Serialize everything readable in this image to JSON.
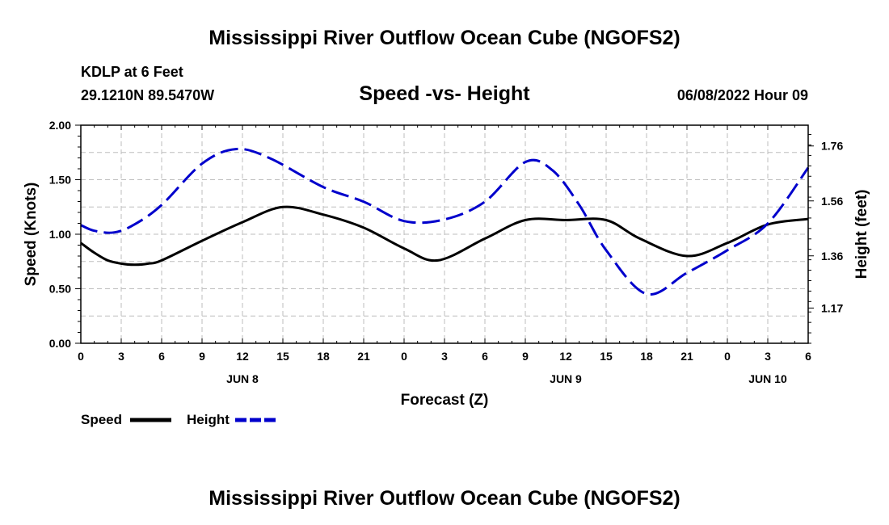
{
  "main_title": "Mississippi River Outflow Ocean Cube (NGOFS2)",
  "footer_title": "Mississippi River Outflow Ocean Cube (NGOFS2)",
  "station": {
    "name": "KDLP at 6 Feet",
    "coords": "29.1210N  89.5470W"
  },
  "subtitle": "Speed -vs- Height",
  "datetime": "06/08/2022 Hour 09",
  "chart_data": {
    "type": "line",
    "title": "Speed -vs- Height",
    "xlabel": "Forecast (Z)",
    "ylabel": "Speed (Knots)",
    "y2label": "Height (feet)",
    "xlim": [
      0,
      54
    ],
    "ylim": [
      0,
      2.0
    ],
    "y2lim": [
      1.0417,
      1.8357
    ],
    "x_ticks": [
      0,
      3,
      6,
      9,
      12,
      15,
      18,
      21,
      24,
      27,
      30,
      33,
      36,
      39,
      42,
      45,
      48,
      51,
      54
    ],
    "x_tick_labels": [
      "0",
      "3",
      "6",
      "9",
      "12",
      "15",
      "18",
      "21",
      "0",
      "3",
      "6",
      "9",
      "12",
      "15",
      "18",
      "21",
      "0",
      "3",
      "6"
    ],
    "day_labels": [
      {
        "x": 12,
        "label": "JUN 8"
      },
      {
        "x": 36,
        "label": "JUN 9"
      },
      {
        "x": 51,
        "label": "JUN 10"
      }
    ],
    "y_ticks": [
      0.0,
      0.5,
      1.0,
      1.5,
      2.0
    ],
    "y_tick_labels": [
      "0.00",
      "0.50",
      "1.00",
      "1.50",
      "2.00"
    ],
    "y2_ticks": [
      1.17,
      1.36,
      1.56,
      1.76
    ],
    "y2_tick_labels": [
      "1.17",
      "1.36",
      "1.56",
      "1.76"
    ],
    "grid": true,
    "series": [
      {
        "name": "Speed",
        "axis": "left",
        "color": "#000000",
        "style": "solid",
        "x": [
          0,
          1,
          2,
          3,
          4,
          5,
          6,
          9,
          12,
          15,
          18,
          21,
          24,
          26.5,
          30,
          33,
          36,
          39,
          41.5,
          45,
          48,
          51,
          54
        ],
        "values": [
          0.92,
          0.83,
          0.76,
          0.73,
          0.72,
          0.73,
          0.76,
          0.94,
          1.11,
          1.25,
          1.18,
          1.06,
          0.87,
          0.76,
          0.96,
          1.13,
          1.13,
          1.13,
          0.96,
          0.8,
          0.92,
          1.09,
          1.14
        ]
      },
      {
        "name": "Height",
        "axis": "right",
        "color": "#0000cc",
        "style": "dashed",
        "x": [
          0,
          1,
          2.5,
          4,
          6,
          9,
          11.5,
          14,
          18,
          21,
          24,
          27,
          30,
          33,
          35,
          37,
          39,
          42,
          45,
          48,
          51,
          54
        ],
        "values": [
          1.4719,
          1.4513,
          1.4454,
          1.4748,
          1.5455,
          1.6958,
          1.7488,
          1.7164,
          1.6104,
          1.5573,
          1.4866,
          1.4925,
          1.5573,
          1.7017,
          1.6723,
          1.5455,
          1.3805,
          1.2215,
          1.2981,
          1.3805,
          1.4778,
          1.6811
        ]
      }
    ]
  },
  "legend": {
    "speed_label": "Speed",
    "height_label": "Height"
  }
}
